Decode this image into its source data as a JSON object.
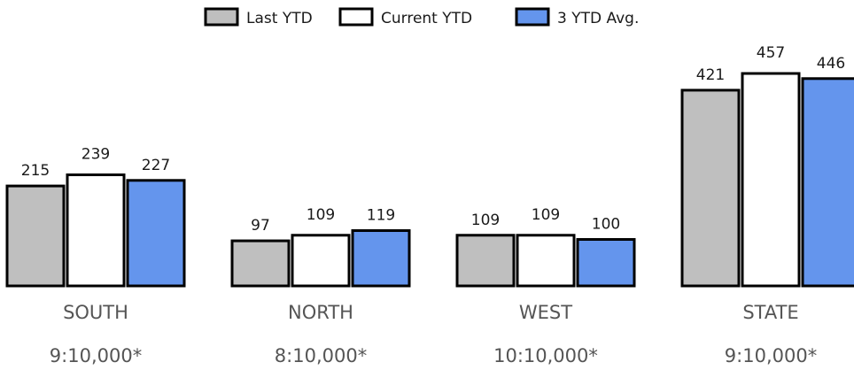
{
  "chart_data": {
    "type": "bar",
    "categories": [
      "SOUTH",
      "NORTH",
      "WEST",
      "STATE"
    ],
    "category_notes": [
      "9:10,000*",
      "8:10,000*",
      "10:10,000*",
      "9:10,000*"
    ],
    "series": [
      {
        "name": "Last YTD",
        "values": [
          215,
          97,
          109,
          421
        ],
        "color": "#bfbfbf"
      },
      {
        "name": "Current YTD",
        "values": [
          239,
          109,
          109,
          457
        ],
        "color": "#ffffff"
      },
      {
        "name": "3 YTD Avg.",
        "values": [
          227,
          119,
          100,
          446
        ],
        "color": "#6495ed"
      }
    ],
    "outline_color": "#000000",
    "legend_position": "top-center",
    "ylim": [
      0,
      457
    ],
    "grid": false,
    "title": "",
    "xlabel": "",
    "ylabel": ""
  }
}
